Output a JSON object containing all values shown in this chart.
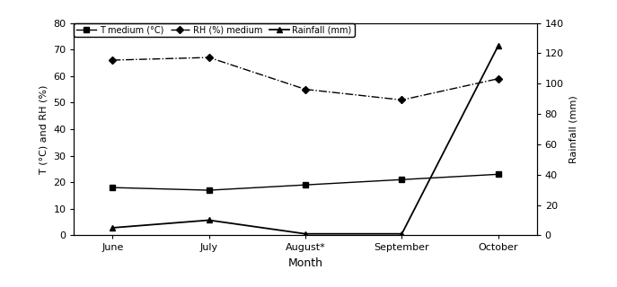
{
  "months": [
    "June",
    "July",
    "August*",
    "September",
    "October"
  ],
  "x": [
    0,
    1,
    2,
    3,
    4
  ],
  "T_medium": [
    18,
    17,
    19,
    21,
    23
  ],
  "RH_medium": [
    66,
    67,
    55,
    51,
    59
  ],
  "Rainfall": [
    5,
    10,
    1,
    1,
    125
  ],
  "left_ylim": [
    0,
    80
  ],
  "left_yticks": [
    0,
    10,
    20,
    30,
    40,
    50,
    60,
    70,
    80
  ],
  "right_ylim": [
    0,
    140
  ],
  "right_yticks": [
    0,
    20,
    40,
    60,
    80,
    100,
    120,
    140
  ],
  "left_ylabel": "T (°C) and RH (%)",
  "right_ylabel": "Rainfall (mm)",
  "xlabel": "Month",
  "legend_labels": [
    "T medium (°C)",
    "RH (%) medium",
    "Rainfall (mm)"
  ],
  "T_color": "#000000",
  "RH_color": "#000000",
  "Rain_color": "#000000",
  "figsize": [
    6.87,
    3.2
  ],
  "dpi": 100
}
